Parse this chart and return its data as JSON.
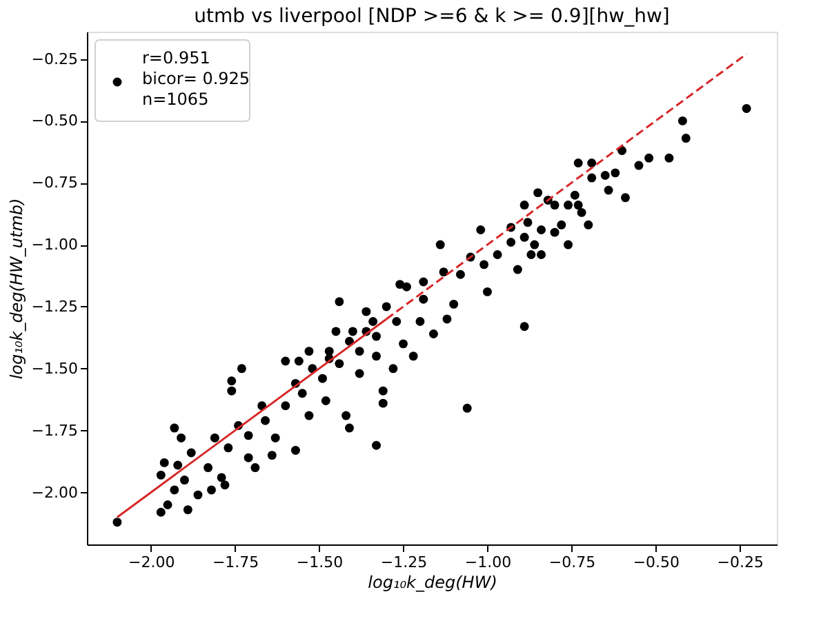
{
  "chart_data": {
    "type": "scatter",
    "title": "utmb vs liverpool [NDP >=6 & k >= 0.9][hw_hw]",
    "xlabel": "log₁₀k_deg(HW)",
    "ylabel": "log₁₀k_deg(HW_utmb)",
    "xlim": [
      -2.19,
      -0.14
    ],
    "ylim": [
      -2.21,
      -0.14
    ],
    "xticks": [
      {
        "value": -2.0,
        "label": "−2.00"
      },
      {
        "value": -1.75,
        "label": "−1.75"
      },
      {
        "value": -1.5,
        "label": "−1.50"
      },
      {
        "value": -1.25,
        "label": "−1.25"
      },
      {
        "value": -1.0,
        "label": "−1.00"
      },
      {
        "value": -0.75,
        "label": "−0.75"
      },
      {
        "value": -0.5,
        "label": "−0.50"
      },
      {
        "value": -0.25,
        "label": "−0.25"
      }
    ],
    "yticks": [
      {
        "value": -2.0,
        "label": "−2.00"
      },
      {
        "value": -1.75,
        "label": "−1.75"
      },
      {
        "value": -1.5,
        "label": "−1.50"
      },
      {
        "value": -1.25,
        "label": "−1.25"
      },
      {
        "value": -1.0,
        "label": "−1.00"
      },
      {
        "value": -0.75,
        "label": "−0.75"
      },
      {
        "value": -0.5,
        "label": "−0.50"
      },
      {
        "value": -0.25,
        "label": "−0.25"
      }
    ],
    "grid": false,
    "legend": "top left",
    "series": [
      {
        "name": "r=0.951\nbicor= 0.925\nn=1065",
        "type": "scatter",
        "marker": "circle",
        "color": "#000000",
        "x": [
          -2.1,
          -0.23,
          -0.42,
          -0.41,
          -0.6,
          -0.52,
          -0.46,
          -0.73,
          -0.69,
          -0.55,
          -0.69,
          -0.65,
          -0.62,
          -0.64,
          -0.59,
          -0.85,
          -0.89,
          -0.74,
          -0.82,
          -0.8,
          -0.76,
          -0.73,
          -0.72,
          -0.7,
          -0.78,
          -0.8,
          -0.84,
          -0.88,
          -0.93,
          -0.93,
          -0.89,
          -0.86,
          -0.87,
          -0.84,
          -0.76,
          -1.02,
          -1.14,
          -0.91,
          -0.97,
          -1.01,
          -1.05,
          -1.0,
          -0.89,
          -1.06,
          -1.33,
          -1.13,
          -1.19,
          -1.08,
          -1.1,
          -1.12,
          -1.16,
          -1.22,
          -1.28,
          -1.31,
          -1.31,
          -1.42,
          -1.41,
          -1.57,
          -1.44,
          -1.36,
          -1.3,
          -1.26,
          -1.24,
          -1.19,
          -1.2,
          -1.25,
          -1.34,
          -1.4,
          -1.47,
          -1.6,
          -1.56,
          -1.73,
          -1.76,
          -1.76,
          -1.93,
          -1.91,
          -1.96,
          -1.97,
          -1.97,
          -1.95,
          -1.89,
          -1.82,
          -1.78,
          -1.69,
          -1.64,
          -1.88,
          -1.92,
          -1.93,
          -1.86,
          -1.9,
          -1.83,
          -1.77,
          -1.71,
          -1.66,
          -1.6,
          -1.55,
          -1.49,
          -1.44,
          -1.38,
          -1.33,
          -1.27,
          -1.81,
          -1.74,
          -1.67,
          -1.57,
          -1.52,
          -1.47,
          -1.36,
          -1.41,
          -1.79,
          -1.71,
          -1.63,
          -1.53,
          -1.48,
          -1.38,
          -1.33,
          -1.45,
          -1.53
        ],
        "values": [
          -2.12,
          -0.45,
          -0.5,
          -0.57,
          -0.62,
          -0.65,
          -0.65,
          -0.67,
          -0.67,
          -0.68,
          -0.73,
          -0.72,
          -0.71,
          -0.78,
          -0.81,
          -0.79,
          -0.84,
          -0.8,
          -0.82,
          -0.84,
          -0.84,
          -0.84,
          -0.87,
          -0.92,
          -0.92,
          -0.95,
          -0.94,
          -0.91,
          -0.93,
          -0.99,
          -0.97,
          -1.0,
          -1.04,
          -1.04,
          -1.0,
          -0.94,
          -1.0,
          -1.1,
          -1.04,
          -1.08,
          -1.05,
          -1.19,
          -1.33,
          -1.66,
          -1.81,
          -1.11,
          -1.15,
          -1.12,
          -1.24,
          -1.3,
          -1.36,
          -1.45,
          -1.5,
          -1.59,
          -1.64,
          -1.69,
          -1.74,
          -1.83,
          -1.23,
          -1.27,
          -1.25,
          -1.16,
          -1.17,
          -1.22,
          -1.31,
          -1.4,
          -1.31,
          -1.35,
          -1.43,
          -1.47,
          -1.47,
          -1.5,
          -1.55,
          -1.59,
          -1.74,
          -1.78,
          -1.88,
          -1.93,
          -2.08,
          -2.05,
          -2.07,
          -1.99,
          -1.97,
          -1.9,
          -1.85,
          -1.84,
          -1.89,
          -1.99,
          -2.01,
          -1.95,
          -1.9,
          -1.82,
          -1.77,
          -1.71,
          -1.65,
          -1.6,
          -1.54,
          -1.48,
          -1.43,
          -1.37,
          -1.31,
          -1.78,
          -1.73,
          -1.65,
          -1.56,
          -1.5,
          -1.46,
          -1.35,
          -1.39,
          -1.94,
          -1.86,
          -1.78,
          -1.69,
          -1.63,
          -1.52,
          -1.45,
          -1.35,
          -1.43
        ]
      },
      {
        "type": "line",
        "line_style": "solid",
        "color": "#d62728",
        "x": [
          -2.1,
          -1.3
        ],
        "values": [
          -2.1,
          -1.3
        ]
      },
      {
        "type": "line",
        "line_style": "dashed",
        "color": "#d62728",
        "x": [
          -1.3,
          -0.23
        ],
        "values": [
          -1.3,
          -0.23
        ]
      }
    ]
  }
}
